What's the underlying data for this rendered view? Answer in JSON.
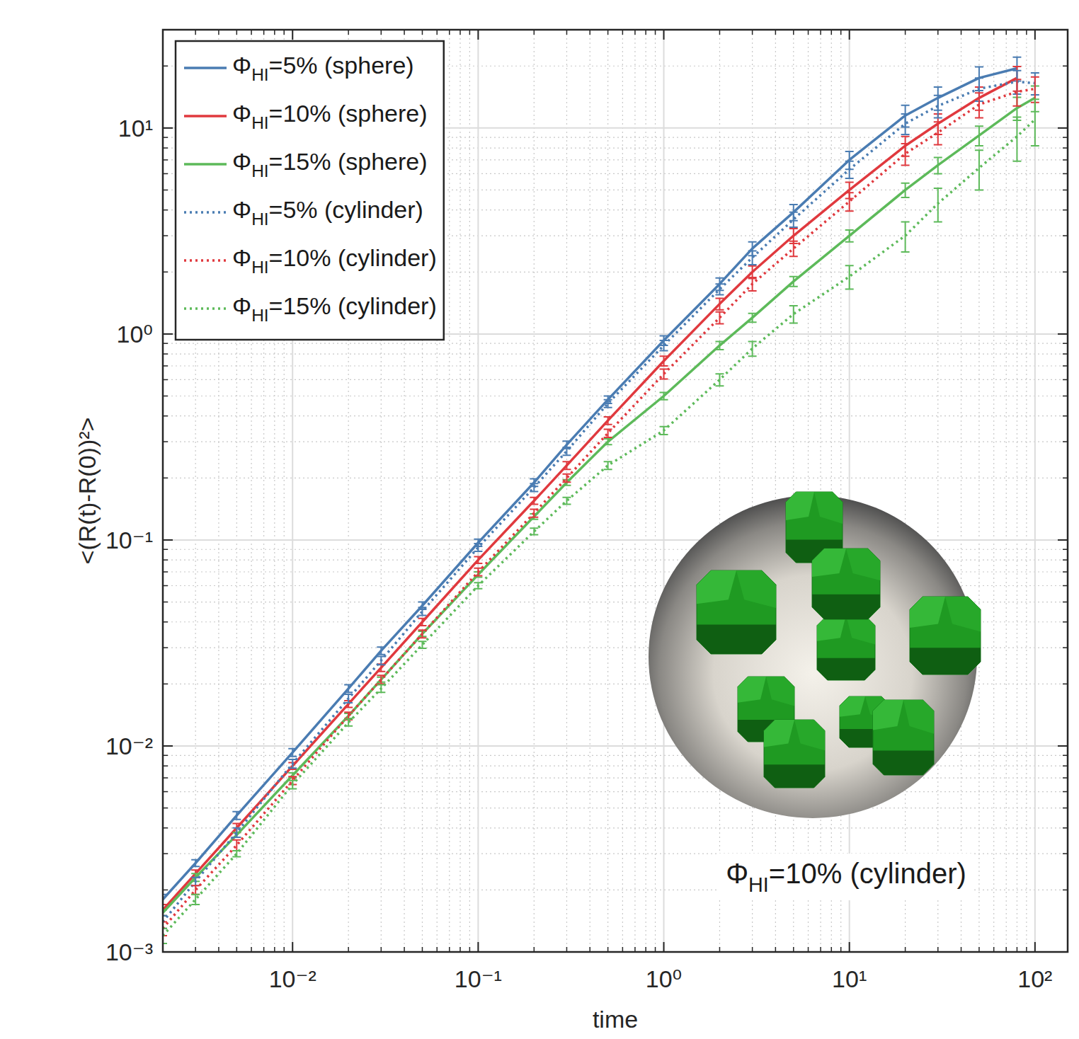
{
  "chart_data": {
    "type": "line",
    "log": true,
    "grid": true,
    "legend": "top-left",
    "x_label": "time",
    "y_label": "<(R(t)-R(0))²>",
    "annotation": "ΦHI=10% (cylinder)",
    "xlim": [
      0.002,
      150
    ],
    "ylim": [
      0.001,
      30
    ],
    "xticks": [
      {
        "value": 0.01,
        "label": "10⁻²"
      },
      {
        "value": 0.1,
        "label": "10⁻¹"
      },
      {
        "value": 1,
        "label": "10⁰"
      },
      {
        "value": 10,
        "label": "10¹"
      },
      {
        "value": 100,
        "label": "10²"
      }
    ],
    "yticks": [
      {
        "value": 0.001,
        "label": "10⁻³"
      },
      {
        "value": 0.01,
        "label": "10⁻²"
      },
      {
        "value": 0.1,
        "label": "10⁻¹"
      },
      {
        "value": 1,
        "label": "10⁰"
      },
      {
        "value": 10,
        "label": "10¹"
      }
    ],
    "x": [
      0.002,
      0.003,
      0.005,
      0.01,
      0.02,
      0.03,
      0.05,
      0.1,
      0.2,
      0.3,
      0.5,
      1,
      2,
      3,
      5,
      10,
      20,
      30,
      50,
      80,
      100
    ],
    "series": [
      {
        "name": "ΦHI=5% (sphere)",
        "color": "#4a7cb2",
        "line_style": "solid",
        "values": [
          0.0018,
          0.0027,
          0.0046,
          0.0093,
          0.019,
          0.029,
          0.048,
          0.097,
          0.19,
          0.29,
          0.48,
          0.93,
          1.75,
          2.6,
          3.9,
          7.0,
          11.5,
          14,
          17.5,
          19.5,
          null
        ],
        "errors": [
          0.0001,
          0.0001,
          0.0002,
          0.0004,
          0.0008,
          0.0012,
          0.002,
          0.004,
          0.008,
          0.012,
          0.02,
          0.05,
          0.12,
          0.2,
          0.35,
          0.7,
          1.4,
          1.8,
          2.3,
          2.6,
          null
        ]
      },
      {
        "name": "ΦHI=10% (sphere)",
        "color": "#e0393e",
        "line_style": "solid",
        "values": [
          0.0016,
          0.0024,
          0.004,
          0.008,
          0.016,
          0.024,
          0.04,
          0.08,
          0.155,
          0.23,
          0.38,
          0.74,
          1.4,
          2.0,
          3.0,
          5.0,
          8.2,
          10.5,
          14,
          17.5,
          null
        ],
        "errors": [
          0.0001,
          0.0001,
          0.0002,
          0.0003,
          0.0006,
          0.001,
          0.0016,
          0.003,
          0.006,
          0.01,
          0.016,
          0.04,
          0.09,
          0.14,
          0.25,
          0.45,
          0.9,
          1.2,
          1.8,
          2.4,
          null
        ]
      },
      {
        "name": "ΦHI=15% (sphere)",
        "color": "#5dba5a",
        "line_style": "solid",
        "values": [
          0.00155,
          0.0023,
          0.0037,
          0.0072,
          0.014,
          0.021,
          0.035,
          0.068,
          0.13,
          0.19,
          0.3,
          0.5,
          0.88,
          1.2,
          1.8,
          3.0,
          5.0,
          6.6,
          9.2,
          12.5,
          14
        ],
        "errors": [
          5e-05,
          0.0001,
          0.0001,
          0.0002,
          0.0004,
          0.0006,
          0.001,
          0.002,
          0.004,
          0.006,
          0.01,
          0.02,
          0.04,
          0.06,
          0.1,
          0.2,
          0.4,
          0.6,
          1.0,
          1.6,
          2.0
        ]
      },
      {
        "name": "ΦHI=5% (cylinder)",
        "color": "#4a7cb2",
        "line_style": "dotted",
        "values": [
          0.0014,
          0.0022,
          0.0038,
          0.0082,
          0.017,
          0.026,
          0.045,
          0.092,
          0.18,
          0.27,
          0.46,
          0.88,
          1.65,
          2.35,
          3.6,
          6.3,
          10.5,
          12.8,
          15.5,
          16.8,
          16.5
        ],
        "errors": [
          0.0001,
          0.0001,
          0.0002,
          0.0004,
          0.0008,
          0.0012,
          0.002,
          0.004,
          0.008,
          0.012,
          0.02,
          0.05,
          0.1,
          0.18,
          0.3,
          0.6,
          1.2,
          1.6,
          2.0,
          2.2,
          2.0
        ]
      },
      {
        "name": "ΦHI=10% (cylinder)",
        "color": "#e0393e",
        "line_style": "dotted",
        "values": [
          0.0013,
          0.002,
          0.0033,
          0.0068,
          0.014,
          0.021,
          0.035,
          0.07,
          0.135,
          0.2,
          0.33,
          0.64,
          1.2,
          1.75,
          2.6,
          4.4,
          7.5,
          9.5,
          13,
          15,
          15.5
        ],
        "errors": [
          0.0001,
          0.0001,
          0.0002,
          0.0003,
          0.0006,
          0.001,
          0.0015,
          0.003,
          0.006,
          0.009,
          0.015,
          0.035,
          0.08,
          0.13,
          0.22,
          0.45,
          0.9,
          1.2,
          1.8,
          2.2,
          2.2
        ]
      },
      {
        "name": "ΦHI=15% (cylinder)",
        "color": "#5dba5a",
        "line_style": "dotted",
        "values": [
          0.0012,
          0.0018,
          0.003,
          0.0065,
          0.013,
          0.019,
          0.031,
          0.06,
          0.11,
          0.155,
          0.23,
          0.34,
          0.6,
          0.85,
          1.25,
          1.9,
          3.0,
          4.3,
          6.4,
          9.1,
          11
        ],
        "errors": [
          0.0001,
          0.0001,
          0.0001,
          0.0003,
          0.0005,
          0.0008,
          0.0012,
          0.002,
          0.004,
          0.006,
          0.01,
          0.015,
          0.04,
          0.07,
          0.12,
          0.25,
          0.5,
          0.8,
          1.4,
          2.2,
          2.8
        ]
      }
    ]
  }
}
